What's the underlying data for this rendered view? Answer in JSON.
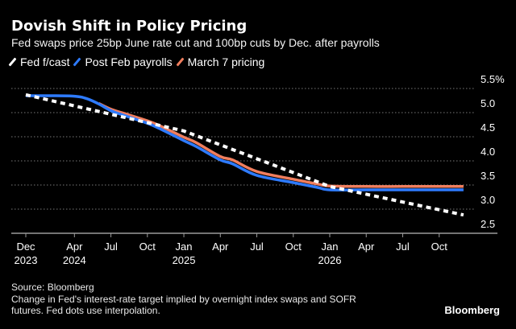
{
  "header": {
    "title": "Dovish Shift in Policy Pricing",
    "subtitle": "Fed swaps price 25bp June rate cut and 100bp cuts by Dec. after payrolls"
  },
  "footer": {
    "source": "Source: Bloomberg",
    "note_line1": "Change in Fed's interest-rate target implied by overnight index swaps and SOFR",
    "note_line2": "futures. Fed dots use interpolation.",
    "brand": "Bloomberg"
  },
  "chart_data": {
    "type": "line",
    "title": "Dovish Shift in Policy Pricing",
    "subtitle": "Fed swaps price 25bp June rate cut and 100bp cuts by Dec. after payrolls",
    "xlabel": "",
    "ylabel": "",
    "ylim": [
      2.5,
      5.5
    ],
    "yticks": [
      {
        "value": 5.5,
        "label": "5.5%"
      },
      {
        "value": 5.0,
        "label": "5.0"
      },
      {
        "value": 4.5,
        "label": "4.5"
      },
      {
        "value": 4.0,
        "label": "4.0"
      },
      {
        "value": 3.5,
        "label": "3.5"
      },
      {
        "value": 3.0,
        "label": "3.0"
      },
      {
        "value": 2.5,
        "label": "2.5"
      }
    ],
    "grid": true,
    "legend_position": "top-left",
    "x_unit": "months since Dec 2023",
    "xlim": [
      0,
      36
    ],
    "xticks": [
      {
        "value": 0,
        "label": "Dec",
        "sublabel": "2023"
      },
      {
        "value": 4,
        "label": "Apr",
        "sublabel": "2024"
      },
      {
        "value": 7,
        "label": "Jul",
        "sublabel": ""
      },
      {
        "value": 10,
        "label": "Oct",
        "sublabel": ""
      },
      {
        "value": 13,
        "label": "Jan",
        "sublabel": "2025"
      },
      {
        "value": 16,
        "label": "Apr",
        "sublabel": ""
      },
      {
        "value": 19,
        "label": "Jul",
        "sublabel": ""
      },
      {
        "value": 22,
        "label": "Oct",
        "sublabel": ""
      },
      {
        "value": 25,
        "label": "Jan",
        "sublabel": "2026"
      },
      {
        "value": 28,
        "label": "Apr",
        "sublabel": ""
      },
      {
        "value": 31,
        "label": "Jul",
        "sublabel": ""
      },
      {
        "value": 34,
        "label": "Oct",
        "sublabel": ""
      }
    ],
    "series": [
      {
        "name": "Fed f/cast",
        "color": "#ffffff",
        "style": "dashed",
        "x": [
          0,
          13,
          25,
          36
        ],
        "values": [
          5.37,
          4.62,
          3.47,
          2.88
        ]
      },
      {
        "name": "Post Feb payrolls",
        "color": "#2e7bff",
        "style": "solid",
        "x": [
          0,
          2,
          4,
          5,
          6,
          7,
          8,
          10,
          11,
          13,
          14,
          16,
          17,
          19,
          22,
          24,
          25,
          28,
          31,
          34,
          36
        ],
        "values": [
          5.35,
          5.35,
          5.34,
          5.29,
          5.18,
          5.04,
          4.95,
          4.78,
          4.67,
          4.42,
          4.3,
          4.02,
          3.94,
          3.7,
          3.55,
          3.45,
          3.4,
          3.4,
          3.4,
          3.4,
          3.4
        ]
      },
      {
        "name": "March 7 pricing",
        "color": "#f07e5e",
        "style": "solid",
        "x": [
          6,
          7,
          8,
          10,
          11,
          13,
          14,
          16,
          17,
          19,
          22,
          24,
          25,
          28,
          31,
          34,
          36
        ],
        "values": [
          5.19,
          5.07,
          4.99,
          4.83,
          4.73,
          4.49,
          4.38,
          4.09,
          4.02,
          3.78,
          3.62,
          3.52,
          3.48,
          3.47,
          3.47,
          3.47,
          3.47
        ]
      }
    ]
  }
}
